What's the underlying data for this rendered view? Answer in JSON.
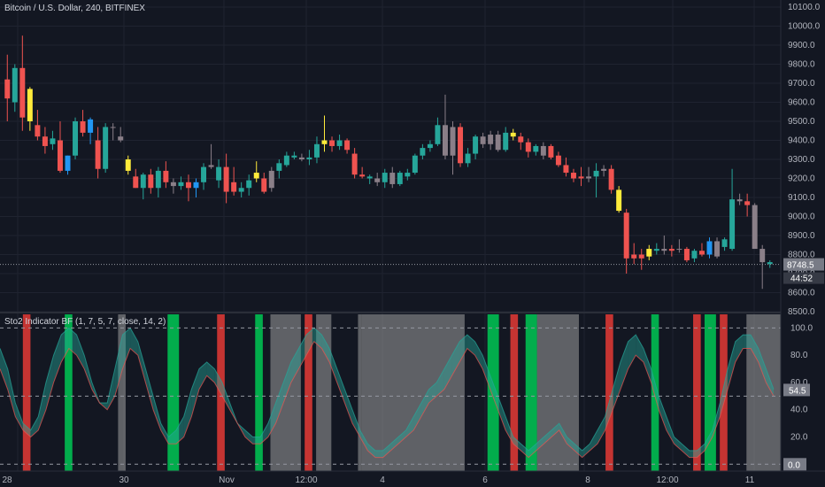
{
  "header": {
    "symbol_title": "Bitcoin / U.S. Dollar, 240, BITFINEX"
  },
  "indicator": {
    "title": "Sto2 Indicator BF (1, 7, 5, 7, close, 14, 2)"
  },
  "colors": {
    "background": "#131722",
    "grid": "#1f2330",
    "up": "#26a69a",
    "down": "#ef5350",
    "yellow": "#ffeb3b",
    "blue": "#2196f3",
    "gray_candle": "#8a7f88",
    "green_band": "#00c853",
    "red_band": "#e53935",
    "gray_band": "#9e9e9e"
  },
  "price_axis": {
    "ticks": [
      "10100.0",
      "10000.0",
      "9900.0",
      "9800.0",
      "9700.0",
      "9600.0",
      "9500.0",
      "9400.0",
      "9300.0",
      "9200.0",
      "9100.0",
      "9000.0",
      "8900.0",
      "8800.0",
      "8700.0",
      "8600.0",
      "8500.0"
    ],
    "last_price": "8748.5",
    "countdown": "44:52"
  },
  "osc_axis": {
    "ticks": [
      "100.0",
      "80.0",
      "60.0",
      "40.0",
      "20.0"
    ],
    "current_value": "54.5",
    "zero_label": "0.0"
  },
  "time_axis": {
    "labels": [
      "28",
      "30",
      "Nov",
      "12:00",
      "4",
      "6",
      "8",
      "12:00",
      "11"
    ]
  },
  "chart_data": {
    "type": "candlestick",
    "ylim": [
      8500,
      10100
    ],
    "candles": [
      {
        "o": 9720,
        "h": 9850,
        "l": 9500,
        "c": 9620,
        "col": "red"
      },
      {
        "o": 9600,
        "h": 9800,
        "l": 9550,
        "c": 9780,
        "col": "up"
      },
      {
        "o": 9780,
        "h": 9950,
        "l": 9450,
        "c": 9520,
        "col": "red"
      },
      {
        "o": 9500,
        "h": 9680,
        "l": 9450,
        "c": 9670,
        "col": "yellow"
      },
      {
        "o": 9480,
        "h": 9560,
        "l": 9400,
        "c": 9420,
        "col": "red"
      },
      {
        "o": 9420,
        "h": 9470,
        "l": 9330,
        "c": 9370,
        "col": "red"
      },
      {
        "o": 9380,
        "h": 9450,
        "l": 9350,
        "c": 9410,
        "col": "up"
      },
      {
        "o": 9400,
        "h": 9500,
        "l": 9230,
        "c": 9240,
        "col": "red"
      },
      {
        "o": 9240,
        "h": 9320,
        "l": 9220,
        "c": 9320,
        "col": "blue"
      },
      {
        "o": 9320,
        "h": 9520,
        "l": 9300,
        "c": 9500,
        "col": "up"
      },
      {
        "o": 9500,
        "h": 9560,
        "l": 9420,
        "c": 9440,
        "col": "red"
      },
      {
        "o": 9440,
        "h": 9520,
        "l": 9380,
        "c": 9510,
        "col": "blue"
      },
      {
        "o": 9400,
        "h": 9470,
        "l": 9200,
        "c": 9250,
        "col": "red"
      },
      {
        "o": 9250,
        "h": 9490,
        "l": 9230,
        "c": 9470,
        "col": "up"
      },
      {
        "o": 9470,
        "h": 9490,
        "l": 9400,
        "c": 9470,
        "col": "gray"
      },
      {
        "o": 9420,
        "h": 9470,
        "l": 9390,
        "c": 9400,
        "col": "gray"
      },
      {
        "o": 9300,
        "h": 9320,
        "l": 9220,
        "c": 9240,
        "col": "yellow"
      },
      {
        "o": 9210,
        "h": 9250,
        "l": 9150,
        "c": 9150,
        "col": "red"
      },
      {
        "o": 9150,
        "h": 9230,
        "l": 9090,
        "c": 9220,
        "col": "up"
      },
      {
        "o": 9220,
        "h": 9250,
        "l": 9120,
        "c": 9150,
        "col": "red"
      },
      {
        "o": 9150,
        "h": 9260,
        "l": 9100,
        "c": 9240,
        "col": "up"
      },
      {
        "o": 9240,
        "h": 9290,
        "l": 9150,
        "c": 9180,
        "col": "red"
      },
      {
        "o": 9180,
        "h": 9200,
        "l": 9120,
        "c": 9160,
        "col": "gray"
      },
      {
        "o": 9160,
        "h": 9210,
        "l": 9140,
        "c": 9180,
        "col": "up"
      },
      {
        "o": 9180,
        "h": 9220,
        "l": 9080,
        "c": 9150,
        "col": "red"
      },
      {
        "o": 9150,
        "h": 9200,
        "l": 9100,
        "c": 9180,
        "col": "blue"
      },
      {
        "o": 9180,
        "h": 9280,
        "l": 9140,
        "c": 9260,
        "col": "up"
      },
      {
        "o": 9260,
        "h": 9380,
        "l": 9250,
        "c": 9270,
        "col": "gray"
      },
      {
        "o": 9260,
        "h": 9300,
        "l": 9150,
        "c": 9190,
        "col": "up"
      },
      {
        "o": 9260,
        "h": 9330,
        "l": 9070,
        "c": 9130,
        "col": "red"
      },
      {
        "o": 9180,
        "h": 9260,
        "l": 9110,
        "c": 9130,
        "col": "red"
      },
      {
        "o": 9130,
        "h": 9180,
        "l": 9100,
        "c": 9150,
        "col": "up"
      },
      {
        "o": 9150,
        "h": 9220,
        "l": 9110,
        "c": 9190,
        "col": "up"
      },
      {
        "o": 9230,
        "h": 9290,
        "l": 9180,
        "c": 9200,
        "col": "yellow"
      },
      {
        "o": 9200,
        "h": 9230,
        "l": 9120,
        "c": 9130,
        "col": "red"
      },
      {
        "o": 9150,
        "h": 9260,
        "l": 9130,
        "c": 9240,
        "col": "gray"
      },
      {
        "o": 9240,
        "h": 9300,
        "l": 9200,
        "c": 9280,
        "col": "up"
      },
      {
        "o": 9270,
        "h": 9340,
        "l": 9260,
        "c": 9320,
        "col": "up"
      },
      {
        "o": 9310,
        "h": 9340,
        "l": 9300,
        "c": 9320,
        "col": "up"
      },
      {
        "o": 9310,
        "h": 9330,
        "l": 9290,
        "c": 9300,
        "col": "gray"
      },
      {
        "o": 9300,
        "h": 9350,
        "l": 9270,
        "c": 9310,
        "col": "up"
      },
      {
        "o": 9310,
        "h": 9420,
        "l": 9280,
        "c": 9380,
        "col": "up"
      },
      {
        "o": 9380,
        "h": 9530,
        "l": 9340,
        "c": 9400,
        "col": "yellow"
      },
      {
        "o": 9400,
        "h": 9420,
        "l": 9340,
        "c": 9370,
        "col": "red"
      },
      {
        "o": 9370,
        "h": 9430,
        "l": 9350,
        "c": 9400,
        "col": "up"
      },
      {
        "o": 9400,
        "h": 9410,
        "l": 9330,
        "c": 9350,
        "col": "red"
      },
      {
        "o": 9330,
        "h": 9360,
        "l": 9200,
        "c": 9220,
        "col": "red"
      },
      {
        "o": 9220,
        "h": 9260,
        "l": 9200,
        "c": 9210,
        "col": "red"
      },
      {
        "o": 9210,
        "h": 9220,
        "l": 9170,
        "c": 9200,
        "col": "up"
      },
      {
        "o": 9200,
        "h": 9230,
        "l": 9160,
        "c": 9180,
        "col": "gray"
      },
      {
        "o": 9180,
        "h": 9250,
        "l": 9150,
        "c": 9230,
        "col": "up"
      },
      {
        "o": 9230,
        "h": 9260,
        "l": 9150,
        "c": 9170,
        "col": "gray"
      },
      {
        "o": 9170,
        "h": 9240,
        "l": 9160,
        "c": 9230,
        "col": "up"
      },
      {
        "o": 9210,
        "h": 9250,
        "l": 9190,
        "c": 9230,
        "col": "up"
      },
      {
        "o": 9230,
        "h": 9330,
        "l": 9220,
        "c": 9320,
        "col": "up"
      },
      {
        "o": 9320,
        "h": 9380,
        "l": 9300,
        "c": 9360,
        "col": "up"
      },
      {
        "o": 9360,
        "h": 9400,
        "l": 9340,
        "c": 9380,
        "col": "up"
      },
      {
        "o": 9380,
        "h": 9520,
        "l": 9370,
        "c": 9480,
        "col": "up"
      },
      {
        "o": 9480,
        "h": 9640,
        "l": 9300,
        "c": 9320,
        "col": "gray"
      },
      {
        "o": 9320,
        "h": 9500,
        "l": 9220,
        "c": 9470,
        "col": "gray"
      },
      {
        "o": 9470,
        "h": 9490,
        "l": 9260,
        "c": 9280,
        "col": "red"
      },
      {
        "o": 9280,
        "h": 9360,
        "l": 9260,
        "c": 9330,
        "col": "up"
      },
      {
        "o": 9330,
        "h": 9430,
        "l": 9300,
        "c": 9420,
        "col": "up"
      },
      {
        "o": 9420,
        "h": 9440,
        "l": 9360,
        "c": 9380,
        "col": "gray"
      },
      {
        "o": 9380,
        "h": 9450,
        "l": 9350,
        "c": 9430,
        "col": "gray"
      },
      {
        "o": 9430,
        "h": 9450,
        "l": 9340,
        "c": 9350,
        "col": "gray"
      },
      {
        "o": 9350,
        "h": 9470,
        "l": 9340,
        "c": 9440,
        "col": "up"
      },
      {
        "o": 9440,
        "h": 9460,
        "l": 9400,
        "c": 9420,
        "col": "yellow"
      },
      {
        "o": 9420,
        "h": 9440,
        "l": 9350,
        "c": 9390,
        "col": "red"
      },
      {
        "o": 9390,
        "h": 9410,
        "l": 9310,
        "c": 9340,
        "col": "red"
      },
      {
        "o": 9340,
        "h": 9380,
        "l": 9320,
        "c": 9370,
        "col": "up"
      },
      {
        "o": 9370,
        "h": 9390,
        "l": 9300,
        "c": 9320,
        "col": "gray"
      },
      {
        "o": 9370,
        "h": 9380,
        "l": 9300,
        "c": 9310,
        "col": "red"
      },
      {
        "o": 9320,
        "h": 9340,
        "l": 9260,
        "c": 9270,
        "col": "red"
      },
      {
        "o": 9270,
        "h": 9310,
        "l": 9210,
        "c": 9230,
        "col": "red"
      },
      {
        "o": 9230,
        "h": 9250,
        "l": 9180,
        "c": 9200,
        "col": "red"
      },
      {
        "o": 9210,
        "h": 9260,
        "l": 9160,
        "c": 9200,
        "col": "red"
      },
      {
        "o": 9200,
        "h": 9260,
        "l": 9180,
        "c": 9210,
        "col": "gray"
      },
      {
        "o": 9210,
        "h": 9280,
        "l": 9100,
        "c": 9240,
        "col": "up"
      },
      {
        "o": 9240,
        "h": 9270,
        "l": 9210,
        "c": 9250,
        "col": "gray"
      },
      {
        "o": 9250,
        "h": 9270,
        "l": 9120,
        "c": 9140,
        "col": "red"
      },
      {
        "o": 9140,
        "h": 9160,
        "l": 9020,
        "c": 9030,
        "col": "yellow"
      },
      {
        "o": 9020,
        "h": 9040,
        "l": 8700,
        "c": 8780,
        "col": "red"
      },
      {
        "o": 8780,
        "h": 8860,
        "l": 8750,
        "c": 8800,
        "col": "red"
      },
      {
        "o": 8800,
        "h": 8830,
        "l": 8720,
        "c": 8780,
        "col": "red"
      },
      {
        "o": 8790,
        "h": 8850,
        "l": 8770,
        "c": 8830,
        "col": "yellow"
      },
      {
        "o": 8830,
        "h": 8860,
        "l": 8800,
        "c": 8820,
        "col": "up"
      },
      {
        "o": 8820,
        "h": 8900,
        "l": 8800,
        "c": 8830,
        "col": "gray"
      },
      {
        "o": 8830,
        "h": 8850,
        "l": 8790,
        "c": 8820,
        "col": "red"
      },
      {
        "o": 8830,
        "h": 8880,
        "l": 8810,
        "c": 8830,
        "col": "gray"
      },
      {
        "o": 8830,
        "h": 8840,
        "l": 8760,
        "c": 8770,
        "col": "red"
      },
      {
        "o": 8780,
        "h": 8830,
        "l": 8760,
        "c": 8820,
        "col": "up"
      },
      {
        "o": 8820,
        "h": 8860,
        "l": 8790,
        "c": 8800,
        "col": "red"
      },
      {
        "o": 8800,
        "h": 8890,
        "l": 8780,
        "c": 8870,
        "col": "blue"
      },
      {
        "o": 8870,
        "h": 8890,
        "l": 8780,
        "c": 8790,
        "col": "gray"
      },
      {
        "o": 8840,
        "h": 8890,
        "l": 8820,
        "c": 8880,
        "col": "up"
      },
      {
        "o": 8830,
        "h": 9250,
        "l": 8820,
        "c": 9090,
        "col": "up"
      },
      {
        "o": 9090,
        "h": 9120,
        "l": 9060,
        "c": 9080,
        "col": "gray"
      },
      {
        "o": 9080,
        "h": 9120,
        "l": 9000,
        "c": 9060,
        "col": "red"
      },
      {
        "o": 9060,
        "h": 9070,
        "l": 8840,
        "c": 8830,
        "col": "gray"
      },
      {
        "o": 8830,
        "h": 8850,
        "l": 8620,
        "c": 8760,
        "col": "gray"
      },
      {
        "o": 8760,
        "h": 8770,
        "l": 8730,
        "c": 8750,
        "col": "up"
      }
    ],
    "oscillator": {
      "ylim": [
        -5,
        110
      ],
      "levels": [
        0,
        50,
        100
      ],
      "line_a": [
        85,
        70,
        45,
        30,
        25,
        35,
        60,
        80,
        95,
        100,
        95,
        80,
        60,
        45,
        45,
        70,
        95,
        100,
        90,
        70,
        50,
        30,
        20,
        25,
        35,
        55,
        70,
        75,
        70,
        60,
        45,
        30,
        25,
        20,
        20,
        30,
        45,
        60,
        75,
        85,
        95,
        100,
        95,
        85,
        70,
        55,
        40,
        25,
        15,
        10,
        10,
        15,
        20,
        25,
        35,
        45,
        55,
        60,
        70,
        80,
        90,
        95,
        90,
        80,
        65,
        50,
        35,
        20,
        15,
        10,
        15,
        20,
        25,
        30,
        20,
        15,
        10,
        15,
        25,
        35,
        55,
        75,
        90,
        95,
        85,
        70,
        50,
        35,
        20,
        15,
        10,
        10,
        15,
        25,
        45,
        70,
        90,
        95,
        95,
        85,
        70,
        55
      ],
      "line_b": [
        70,
        55,
        35,
        25,
        20,
        25,
        40,
        60,
        75,
        85,
        80,
        70,
        55,
        45,
        40,
        50,
        70,
        85,
        80,
        60,
        40,
        25,
        15,
        15,
        20,
        35,
        55,
        65,
        60,
        50,
        40,
        30,
        20,
        15,
        15,
        20,
        30,
        45,
        60,
        70,
        80,
        90,
        85,
        75,
        60,
        45,
        30,
        20,
        10,
        5,
        5,
        10,
        15,
        20,
        25,
        35,
        45,
        50,
        55,
        65,
        75,
        85,
        80,
        70,
        55,
        40,
        25,
        15,
        10,
        5,
        10,
        15,
        20,
        25,
        15,
        10,
        5,
        10,
        15,
        25,
        40,
        55,
        70,
        80,
        75,
        60,
        40,
        25,
        15,
        10,
        5,
        5,
        10,
        20,
        35,
        55,
        75,
        85,
        85,
        75,
        60,
        50
      ]
    },
    "bands": [
      {
        "start": 6,
        "end": 8,
        "col": "red"
      },
      {
        "start": 17,
        "end": 19,
        "col": "green"
      },
      {
        "start": 31,
        "end": 33,
        "col": "gray"
      },
      {
        "start": 44,
        "end": 47,
        "col": "green"
      },
      {
        "start": 57,
        "end": 59,
        "col": "red"
      },
      {
        "start": 67,
        "end": 69,
        "col": "green"
      },
      {
        "start": 71,
        "end": 79,
        "col": "gray"
      },
      {
        "start": 80,
        "end": 82,
        "col": "red"
      },
      {
        "start": 83,
        "end": 87,
        "col": "gray"
      },
      {
        "start": 94,
        "end": 95,
        "col": "gray"
      },
      {
        "start": 95,
        "end": 122,
        "col": "gray"
      },
      {
        "start": 128,
        "end": 131,
        "col": "green"
      },
      {
        "start": 134,
        "end": 136,
        "col": "red"
      },
      {
        "start": 138,
        "end": 141,
        "col": "green"
      },
      {
        "start": 141,
        "end": 152,
        "col": "gray"
      },
      {
        "start": 159,
        "end": 161,
        "col": "red"
      },
      {
        "start": 171,
        "end": 173,
        "col": "green"
      },
      {
        "start": 182,
        "end": 184,
        "col": "red"
      },
      {
        "start": 185,
        "end": 188,
        "col": "green"
      },
      {
        "start": 189,
        "end": 191,
        "col": "red"
      },
      {
        "start": 196,
        "end": 205,
        "col": "gray"
      }
    ]
  }
}
